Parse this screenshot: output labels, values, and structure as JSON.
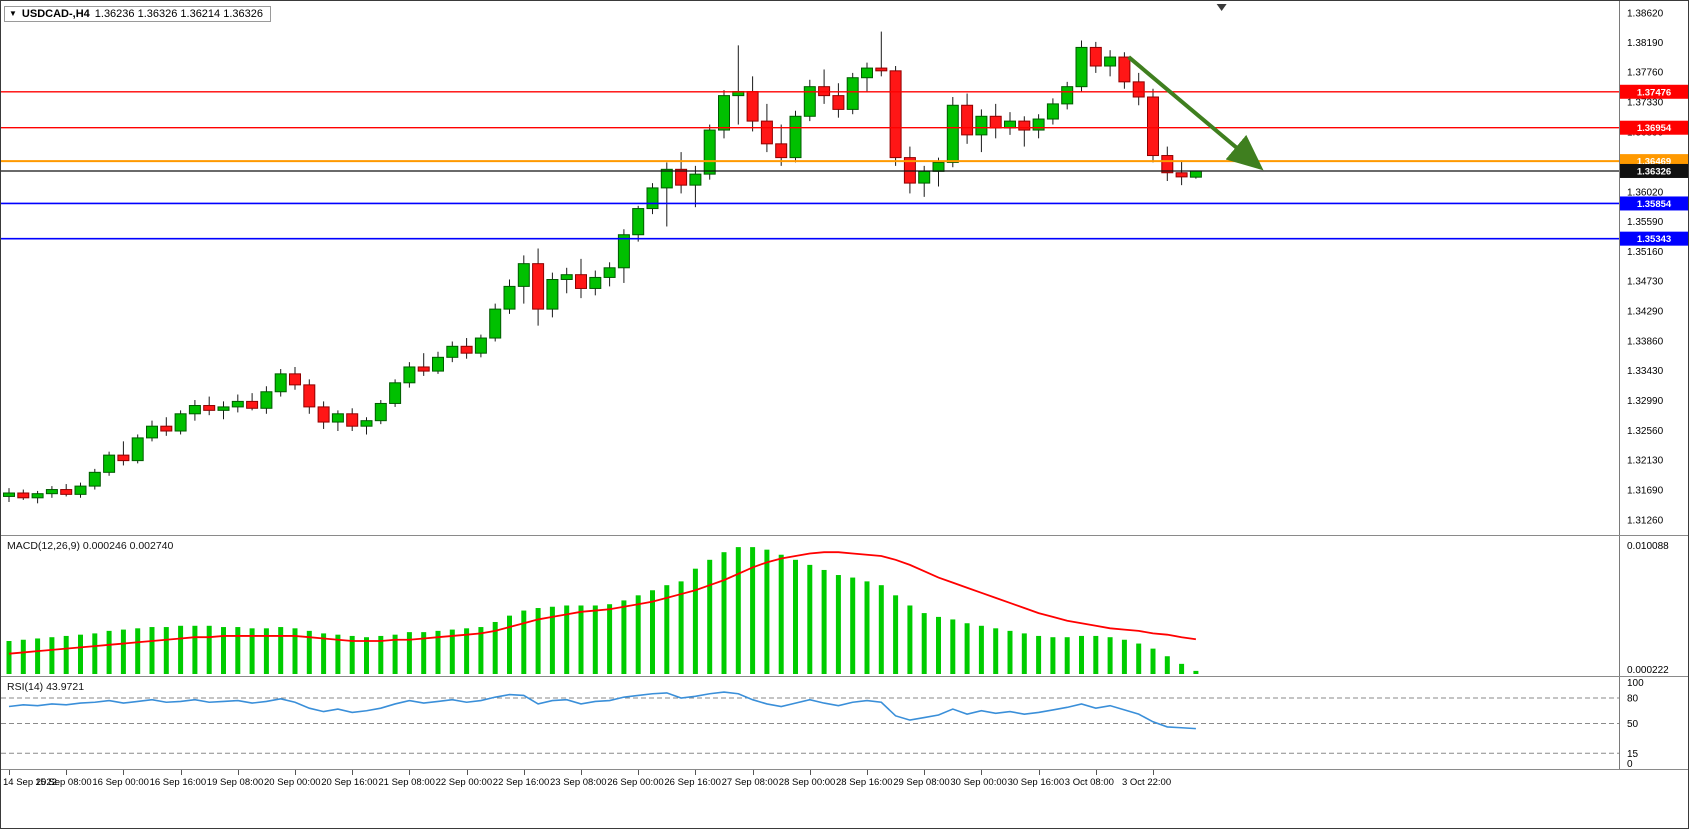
{
  "title_bar": {
    "symbol": "USDCAD-,H4",
    "ohlc": "1.36236 1.36326 1.36214 1.36326",
    "dropdown_icon": "symbol-dropdown"
  },
  "colors": {
    "bull": "#00c000",
    "bear": "#ff1616",
    "bull_edge": "#005a00",
    "bear_edge": "#8f0000",
    "wick": "#1a1a1a",
    "macd_hist": "#00cc00",
    "macd_signal": "#ff0000",
    "rsi_line": "#3a8fd9",
    "axis_line": "#7a7a7a"
  },
  "chart_data": {
    "type": "candlestick",
    "symbol": "USDCAD",
    "timeframe": "H4",
    "price_axis": {
      "ticks": [
        "1.38620",
        "1.38190",
        "1.37760",
        "1.37330",
        "1.36890",
        "1.36460",
        "1.36020",
        "1.35590",
        "1.35160",
        "1.34730",
        "1.34290",
        "1.33860",
        "1.33430",
        "1.32990",
        "1.32560",
        "1.32130",
        "1.31690",
        "1.31260"
      ]
    },
    "hlines": [
      {
        "value": 1.37476,
        "label": "1.37476",
        "color": "#ff0000",
        "width": 1.4
      },
      {
        "value": 1.36954,
        "label": "1.36954",
        "color": "#ff0000",
        "width": 1.4
      },
      {
        "value": 1.36469,
        "label": "1.36469",
        "color": "#ff9900",
        "width": 2
      },
      {
        "value": 1.36326,
        "label": "1.36326",
        "color": "#111111",
        "width": 1.2
      },
      {
        "value": 1.35854,
        "label": "1.35854",
        "color": "#0000ff",
        "width": 1.6
      },
      {
        "value": 1.35343,
        "label": "1.35343",
        "color": "#0000ff",
        "width": 1.6
      }
    ],
    "arrow": {
      "from_bar": 78.3,
      "from_price": 1.3798,
      "to_bar": 87.3,
      "to_price": 1.3641,
      "color": "#3f7f1f"
    },
    "shift_marker_bar": 84.8,
    "x_ticks": [
      {
        "i": 0,
        "label": "14 Sep 2022"
      },
      {
        "i": 4,
        "label": "15 Sep 08:00"
      },
      {
        "i": 8,
        "label": "16 Sep 00:00"
      },
      {
        "i": 12,
        "label": "16 Sep 16:00"
      },
      {
        "i": 16,
        "label": "19 Sep 08:00"
      },
      {
        "i": 20,
        "label": "20 Sep 00:00"
      },
      {
        "i": 24,
        "label": "20 Sep 16:00"
      },
      {
        "i": 28,
        "label": "21 Sep 08:00"
      },
      {
        "i": 32,
        "label": "22 Sep 00:00"
      },
      {
        "i": 36,
        "label": "22 Sep 16:00"
      },
      {
        "i": 40,
        "label": "23 Sep 08:00"
      },
      {
        "i": 44,
        "label": "26 Sep 00:00"
      },
      {
        "i": 48,
        "label": "26 Sep 16:00"
      },
      {
        "i": 52,
        "label": "27 Sep 08:00"
      },
      {
        "i": 56,
        "label": "28 Sep 00:00"
      },
      {
        "i": 60,
        "label": "28 Sep 16:00"
      },
      {
        "i": 64,
        "label": "29 Sep 08:00"
      },
      {
        "i": 68,
        "label": "30 Sep 00:00"
      },
      {
        "i": 72,
        "label": "30 Sep 16:00"
      },
      {
        "i": 76,
        "label": "3 Oct 08:00"
      },
      {
        "i": 80,
        "label": "3 Oct 22:00"
      }
    ],
    "candles": [
      [
        1.316,
        1.3172,
        1.3152,
        1.3165
      ],
      [
        1.3165,
        1.317,
        1.3155,
        1.3158
      ],
      [
        1.3158,
        1.3168,
        1.315,
        1.3164
      ],
      [
        1.3164,
        1.3175,
        1.3158,
        1.317
      ],
      [
        1.317,
        1.3178,
        1.316,
        1.3163
      ],
      [
        1.3163,
        1.318,
        1.3158,
        1.3175
      ],
      [
        1.3175,
        1.32,
        1.317,
        1.3195
      ],
      [
        1.3195,
        1.3225,
        1.319,
        1.322
      ],
      [
        1.322,
        1.324,
        1.3205,
        1.3212
      ],
      [
        1.3212,
        1.325,
        1.3208,
        1.3245
      ],
      [
        1.3245,
        1.327,
        1.324,
        1.3262
      ],
      [
        1.3262,
        1.3275,
        1.3248,
        1.3255
      ],
      [
        1.3255,
        1.3285,
        1.325,
        1.328
      ],
      [
        1.328,
        1.33,
        1.327,
        1.3292
      ],
      [
        1.3292,
        1.3305,
        1.3278,
        1.3285
      ],
      [
        1.3285,
        1.3298,
        1.3272,
        1.329
      ],
      [
        1.329,
        1.3308,
        1.3282,
        1.3298
      ],
      [
        1.3298,
        1.331,
        1.3285,
        1.3288
      ],
      [
        1.3288,
        1.332,
        1.328,
        1.3312
      ],
      [
        1.3312,
        1.3345,
        1.3305,
        1.3338
      ],
      [
        1.3338,
        1.3348,
        1.3315,
        1.3322
      ],
      [
        1.3322,
        1.333,
        1.328,
        1.329
      ],
      [
        1.329,
        1.3298,
        1.3258,
        1.3268
      ],
      [
        1.3268,
        1.3285,
        1.3255,
        1.328
      ],
      [
        1.328,
        1.3288,
        1.3255,
        1.3262
      ],
      [
        1.3262,
        1.3275,
        1.325,
        1.327
      ],
      [
        1.327,
        1.33,
        1.3265,
        1.3295
      ],
      [
        1.3295,
        1.333,
        1.329,
        1.3325
      ],
      [
        1.3325,
        1.3355,
        1.3318,
        1.3348
      ],
      [
        1.3348,
        1.3368,
        1.3335,
        1.3342
      ],
      [
        1.3342,
        1.337,
        1.3338,
        1.3362
      ],
      [
        1.3362,
        1.3385,
        1.3355,
        1.3378
      ],
      [
        1.3378,
        1.339,
        1.336,
        1.3368
      ],
      [
        1.3368,
        1.3395,
        1.3362,
        1.339
      ],
      [
        1.339,
        1.344,
        1.3385,
        1.3432
      ],
      [
        1.3432,
        1.3475,
        1.3425,
        1.3465
      ],
      [
        1.3465,
        1.351,
        1.344,
        1.3498
      ],
      [
        1.3498,
        1.352,
        1.3408,
        1.3432
      ],
      [
        1.3432,
        1.3485,
        1.342,
        1.3475
      ],
      [
        1.3475,
        1.3492,
        1.3455,
        1.3482
      ],
      [
        1.3482,
        1.3505,
        1.3448,
        1.3462
      ],
      [
        1.3462,
        1.3488,
        1.3452,
        1.3478
      ],
      [
        1.3478,
        1.35,
        1.3465,
        1.3492
      ],
      [
        1.3492,
        1.3548,
        1.347,
        1.354
      ],
      [
        1.354,
        1.3582,
        1.353,
        1.3578
      ],
      [
        1.3578,
        1.3615,
        1.357,
        1.3608
      ],
      [
        1.3608,
        1.3645,
        1.3552,
        1.3635
      ],
      [
        1.3635,
        1.366,
        1.36,
        1.3612
      ],
      [
        1.3612,
        1.364,
        1.358,
        1.3628
      ],
      [
        1.3628,
        1.37,
        1.362,
        1.3692
      ],
      [
        1.3692,
        1.375,
        1.368,
        1.3742
      ],
      [
        1.3742,
        1.3815,
        1.37,
        1.3748
      ],
      [
        1.3748,
        1.377,
        1.369,
        1.3705
      ],
      [
        1.3705,
        1.373,
        1.366,
        1.3672
      ],
      [
        1.3672,
        1.37,
        1.364,
        1.3652
      ],
      [
        1.3652,
        1.372,
        1.3645,
        1.3712
      ],
      [
        1.3712,
        1.3765,
        1.3705,
        1.3755
      ],
      [
        1.3755,
        1.378,
        1.373,
        1.3742
      ],
      [
        1.3742,
        1.376,
        1.371,
        1.3722
      ],
      [
        1.3722,
        1.3775,
        1.3715,
        1.3768
      ],
      [
        1.3768,
        1.379,
        1.3748,
        1.3782
      ],
      [
        1.3782,
        1.3835,
        1.377,
        1.3778
      ],
      [
        1.3778,
        1.3785,
        1.364,
        1.3652
      ],
      [
        1.3652,
        1.3668,
        1.36,
        1.3615
      ],
      [
        1.3615,
        1.364,
        1.3595,
        1.3632
      ],
      [
        1.3632,
        1.3652,
        1.361,
        1.3645
      ],
      [
        1.3645,
        1.374,
        1.3638,
        1.3728
      ],
      [
        1.3728,
        1.3745,
        1.3672,
        1.3685
      ],
      [
        1.3685,
        1.3722,
        1.366,
        1.3712
      ],
      [
        1.3712,
        1.373,
        1.368,
        1.3695
      ],
      [
        1.3695,
        1.3718,
        1.3685,
        1.3705
      ],
      [
        1.3705,
        1.3712,
        1.3668,
        1.3692
      ],
      [
        1.3692,
        1.3715,
        1.368,
        1.3708
      ],
      [
        1.3708,
        1.3738,
        1.37,
        1.373
      ],
      [
        1.373,
        1.3762,
        1.3722,
        1.3755
      ],
      [
        1.3755,
        1.3822,
        1.3748,
        1.3812
      ],
      [
        1.3812,
        1.382,
        1.3775,
        1.3785
      ],
      [
        1.3785,
        1.3808,
        1.377,
        1.3798
      ],
      [
        1.3798,
        1.3805,
        1.3752,
        1.3762
      ],
      [
        1.3762,
        1.3775,
        1.3728,
        1.374
      ],
      [
        1.374,
        1.3752,
        1.3645,
        1.3655
      ],
      [
        1.3655,
        1.3668,
        1.3618,
        1.363
      ],
      [
        1.363,
        1.3648,
        1.3612,
        1.3624
      ],
      [
        1.36236,
        1.36326,
        1.36214,
        1.36326
      ]
    ]
  },
  "macd": {
    "label": "MACD(12,26,9) 0.000246 0.002740",
    "main_value": 0.000246,
    "signal_value": 0.00274,
    "scale_max": 0.010088,
    "axis_max_label": "0.010088",
    "axis_min_label": "0.000222",
    "histogram": [
      0.0026,
      0.0027,
      0.0028,
      0.0029,
      0.003,
      0.0031,
      0.0032,
      0.0034,
      0.0035,
      0.0036,
      0.0037,
      0.0037,
      0.0038,
      0.0038,
      0.0038,
      0.0037,
      0.0037,
      0.0036,
      0.0036,
      0.0037,
      0.0036,
      0.0034,
      0.0032,
      0.0031,
      0.003,
      0.0029,
      0.003,
      0.0031,
      0.0033,
      0.0033,
      0.0034,
      0.0035,
      0.0036,
      0.0037,
      0.0041,
      0.0046,
      0.005,
      0.0052,
      0.0053,
      0.0054,
      0.0054,
      0.0054,
      0.0055,
      0.0058,
      0.0062,
      0.0066,
      0.007,
      0.0073,
      0.0083,
      0.009,
      0.0096,
      0.01,
      0.01,
      0.0098,
      0.0094,
      0.009,
      0.0086,
      0.0082,
      0.0078,
      0.0076,
      0.0073,
      0.007,
      0.0062,
      0.0054,
      0.0048,
      0.0045,
      0.0043,
      0.004,
      0.0038,
      0.0036,
      0.0034,
      0.0032,
      0.003,
      0.0029,
      0.0029,
      0.003,
      0.003,
      0.0029,
      0.0027,
      0.0024,
      0.002,
      0.0014,
      0.0008,
      0.000246
    ],
    "signal": [
      0.0016,
      0.0017,
      0.0018,
      0.0019,
      0.002,
      0.0021,
      0.0022,
      0.0023,
      0.0024,
      0.0025,
      0.0026,
      0.0027,
      0.0028,
      0.0029,
      0.0029,
      0.003,
      0.003,
      0.003,
      0.003,
      0.003,
      0.003,
      0.0029,
      0.0028,
      0.0027,
      0.0026,
      0.0026,
      0.0026,
      0.0027,
      0.0027,
      0.0028,
      0.0029,
      0.003,
      0.0031,
      0.0032,
      0.0034,
      0.0037,
      0.004,
      0.0043,
      0.0045,
      0.0047,
      0.0049,
      0.005,
      0.0051,
      0.0053,
      0.0055,
      0.0057,
      0.006,
      0.0063,
      0.0066,
      0.007,
      0.0074,
      0.0079,
      0.0084,
      0.0088,
      0.0091,
      0.0093,
      0.0095,
      0.0096,
      0.0096,
      0.0095,
      0.0094,
      0.0093,
      0.009,
      0.0086,
      0.0081,
      0.0076,
      0.0072,
      0.0068,
      0.0064,
      0.006,
      0.0056,
      0.0052,
      0.0048,
      0.0045,
      0.0042,
      0.004,
      0.0038,
      0.0036,
      0.0035,
      0.0034,
      0.0032,
      0.0031,
      0.0029,
      0.00274
    ]
  },
  "rsi": {
    "label": "RSI(14) 43.9721",
    "current_value": 43.9721,
    "axis_ticks": [
      "100",
      "80",
      "50",
      "15",
      "0"
    ],
    "levels": [
      80,
      50,
      15
    ],
    "values": [
      70,
      72,
      71,
      73,
      72,
      74,
      75,
      77,
      74,
      76,
      78,
      75,
      76,
      78,
      75,
      76,
      77,
      74,
      76,
      79,
      75,
      68,
      64,
      67,
      63,
      65,
      68,
      73,
      77,
      74,
      76,
      78,
      75,
      77,
      81,
      84,
      83,
      73,
      77,
      78,
      73,
      76,
      77,
      81,
      83,
      85,
      86,
      80,
      82,
      85,
      87,
      85,
      78,
      73,
      70,
      74,
      78,
      74,
      71,
      75,
      77,
      75,
      59,
      54,
      57,
      60,
      67,
      61,
      65,
      62,
      64,
      61,
      63,
      66,
      69,
      73,
      68,
      71,
      66,
      61,
      52,
      46,
      45,
      43.97
    ]
  }
}
